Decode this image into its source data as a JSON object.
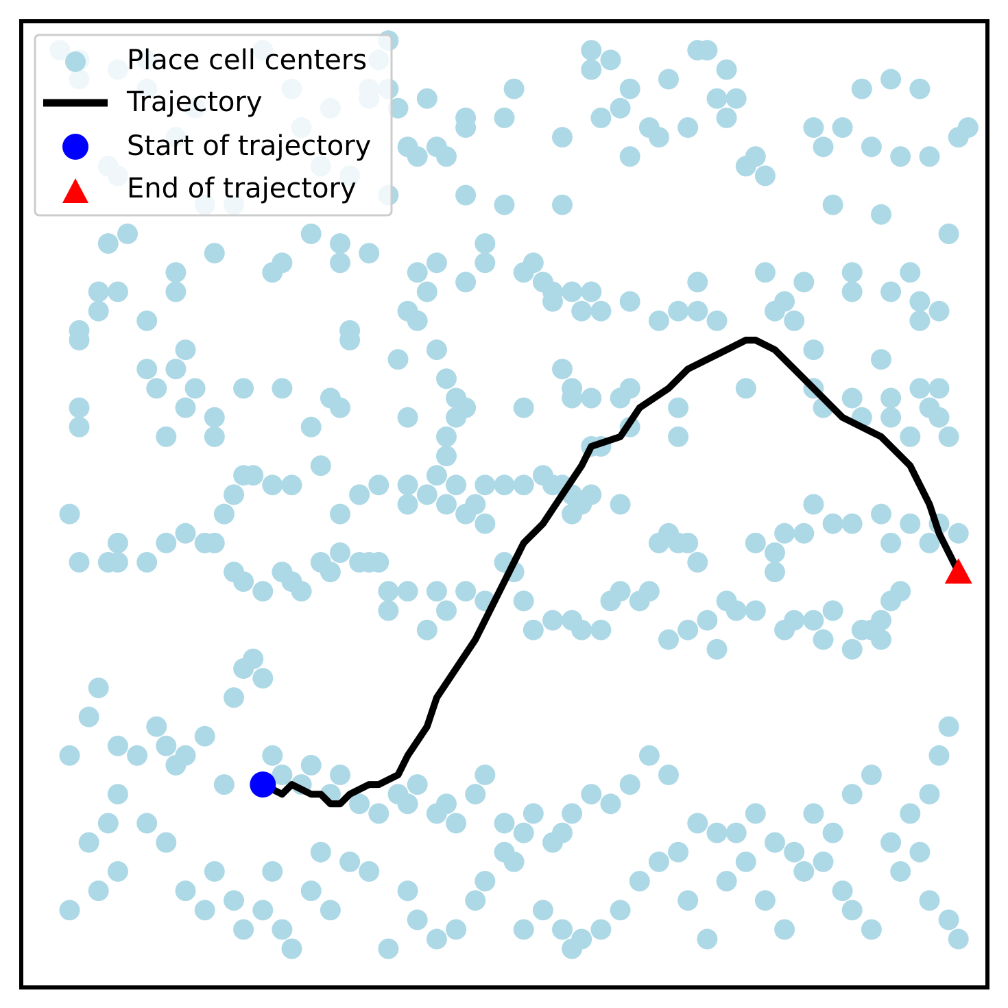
{
  "chart_data": {
    "type": "scatter",
    "title": "",
    "xlabel": "",
    "ylabel": "",
    "xlim": [
      0,
      1
    ],
    "ylim": [
      0,
      1
    ],
    "grid": false,
    "legend_position": "top-left",
    "colors": {
      "place_cells": "#add8e6",
      "trajectory": "#000000",
      "start": "#0000ff",
      "end": "#ff0000",
      "frame": "#000000"
    },
    "legend": {
      "place_cells": "Place cell centers",
      "trajectory": "Trajectory",
      "start": "Start of trajectory",
      "end": "End of trajectory"
    },
    "place_cells": [
      [
        0.04,
        0.97
      ],
      [
        0.06,
        0.96
      ],
      [
        0.06,
        0.94
      ],
      [
        0.09,
        0.85
      ],
      [
        0.1,
        0.84
      ],
      [
        0.1,
        0.95
      ],
      [
        0.13,
        0.96
      ],
      [
        0.13,
        0.93
      ],
      [
        0.16,
        0.88
      ],
      [
        0.18,
        0.91
      ],
      [
        0.19,
        0.81
      ],
      [
        0.25,
        0.97
      ],
      [
        0.28,
        0.93
      ],
      [
        0.29,
        0.89
      ],
      [
        0.31,
        0.85
      ],
      [
        0.32,
        0.91
      ],
      [
        0.34,
        0.84
      ],
      [
        0.36,
        0.93
      ],
      [
        0.36,
        0.92
      ],
      [
        0.37,
        0.96
      ],
      [
        0.38,
        0.98
      ],
      [
        0.38,
        0.93
      ],
      [
        0.39,
        0.91
      ],
      [
        0.4,
        0.87
      ],
      [
        0.41,
        0.86
      ],
      [
        0.42,
        0.92
      ],
      [
        0.43,
        0.87
      ],
      [
        0.44,
        0.86
      ],
      [
        0.46,
        0.89
      ],
      [
        0.46,
        0.9
      ],
      [
        0.46,
        0.82
      ],
      [
        0.5,
        0.81
      ],
      [
        0.5,
        0.9
      ],
      [
        0.51,
        0.93
      ],
      [
        0.56,
        0.81
      ],
      [
        0.56,
        0.88
      ],
      [
        0.59,
        0.97
      ],
      [
        0.59,
        0.95
      ],
      [
        0.6,
        0.9
      ],
      [
        0.61,
        0.96
      ],
      [
        0.62,
        0.91
      ],
      [
        0.63,
        0.86
      ],
      [
        0.63,
        0.93
      ],
      [
        0.65,
        0.89
      ],
      [
        0.66,
        0.88
      ],
      [
        0.67,
        0.94
      ],
      [
        0.69,
        0.89
      ],
      [
        0.7,
        0.97
      ],
      [
        0.71,
        0.97
      ],
      [
        0.72,
        0.92
      ],
      [
        0.73,
        0.95
      ],
      [
        0.73,
        0.9
      ],
      [
        0.74,
        0.92
      ],
      [
        0.75,
        0.85
      ],
      [
        0.76,
        0.86
      ],
      [
        0.77,
        0.84
      ],
      [
        0.82,
        0.89
      ],
      [
        0.83,
        0.87
      ],
      [
        0.84,
        0.81
      ],
      [
        0.85,
        0.89
      ],
      [
        0.87,
        0.93
      ],
      [
        0.88,
        0.87
      ],
      [
        0.89,
        0.8
      ],
      [
        0.9,
        0.94
      ],
      [
        0.91,
        0.86
      ],
      [
        0.93,
        0.93
      ],
      [
        0.94,
        0.86
      ],
      [
        0.96,
        0.78
      ],
      [
        0.97,
        0.88
      ],
      [
        0.98,
        0.89
      ],
      [
        0.09,
        0.77
      ],
      [
        0.11,
        0.78
      ],
      [
        0.08,
        0.72
      ],
      [
        0.1,
        0.72
      ],
      [
        0.13,
        0.69
      ],
      [
        0.16,
        0.74
      ],
      [
        0.16,
        0.72
      ],
      [
        0.2,
        0.76
      ],
      [
        0.22,
        0.81
      ],
      [
        0.27,
        0.75
      ],
      [
        0.26,
        0.74
      ],
      [
        0.3,
        0.78
      ],
      [
        0.33,
        0.75
      ],
      [
        0.33,
        0.77
      ],
      [
        0.36,
        0.76
      ],
      [
        0.38,
        0.82
      ],
      [
        0.41,
        0.74
      ],
      [
        0.4,
        0.7
      ],
      [
        0.43,
        0.75
      ],
      [
        0.42,
        0.72
      ],
      [
        0.46,
        0.73
      ],
      [
        0.48,
        0.75
      ],
      [
        0.48,
        0.77
      ],
      [
        0.52,
        0.74
      ],
      [
        0.53,
        0.75
      ],
      [
        0.54,
        0.73
      ],
      [
        0.55,
        0.72
      ],
      [
        0.57,
        0.72
      ],
      [
        0.55,
        0.71
      ],
      [
        0.58,
        0.7
      ],
      [
        0.59,
        0.72
      ],
      [
        0.6,
        0.7
      ],
      [
        0.63,
        0.71
      ],
      [
        0.66,
        0.69
      ],
      [
        0.68,
        0.7
      ],
      [
        0.7,
        0.73
      ],
      [
        0.7,
        0.7
      ],
      [
        0.72,
        0.69
      ],
      [
        0.77,
        0.74
      ],
      [
        0.78,
        0.7
      ],
      [
        0.79,
        0.71
      ],
      [
        0.8,
        0.69
      ],
      [
        0.81,
        0.73
      ],
      [
        0.86,
        0.72
      ],
      [
        0.86,
        0.74
      ],
      [
        0.9,
        0.72
      ],
      [
        0.92,
        0.74
      ],
      [
        0.93,
        0.71
      ],
      [
        0.93,
        0.69
      ],
      [
        0.95,
        0.7
      ],
      [
        0.06,
        0.67
      ],
      [
        0.06,
        0.68
      ],
      [
        0.08,
        0.7
      ],
      [
        0.13,
        0.64
      ],
      [
        0.14,
        0.62
      ],
      [
        0.16,
        0.64
      ],
      [
        0.18,
        0.62
      ],
      [
        0.17,
        0.66
      ],
      [
        0.23,
        0.62
      ],
      [
        0.27,
        0.62
      ],
      [
        0.33,
        0.6
      ],
      [
        0.32,
        0.61
      ],
      [
        0.34,
        0.68
      ],
      [
        0.34,
        0.67
      ],
      [
        0.39,
        0.65
      ],
      [
        0.4,
        0.59
      ],
      [
        0.41,
        0.69
      ],
      [
        0.43,
        0.66
      ],
      [
        0.44,
        0.63
      ],
      [
        0.45,
        0.61
      ],
      [
        0.45,
        0.59
      ],
      [
        0.44,
        0.57
      ],
      [
        0.46,
        0.6
      ],
      [
        0.44,
        0.55
      ],
      [
        0.52,
        0.6
      ],
      [
        0.56,
        0.64
      ],
      [
        0.57,
        0.62
      ],
      [
        0.57,
        0.61
      ],
      [
        0.59,
        0.61
      ],
      [
        0.59,
        0.56
      ],
      [
        0.6,
        0.56
      ],
      [
        0.62,
        0.61
      ],
      [
        0.63,
        0.62
      ],
      [
        0.63,
        0.58
      ],
      [
        0.68,
        0.6
      ],
      [
        0.68,
        0.57
      ],
      [
        0.75,
        0.62
      ],
      [
        0.82,
        0.62
      ],
      [
        0.82,
        0.66
      ],
      [
        0.83,
        0.6
      ],
      [
        0.86,
        0.61
      ],
      [
        0.87,
        0.59
      ],
      [
        0.89,
        0.65
      ],
      [
        0.9,
        0.61
      ],
      [
        0.9,
        0.59
      ],
      [
        0.92,
        0.57
      ],
      [
        0.93,
        0.62
      ],
      [
        0.94,
        0.6
      ],
      [
        0.95,
        0.62
      ],
      [
        0.95,
        0.59
      ],
      [
        0.96,
        0.57
      ],
      [
        0.06,
        0.6
      ],
      [
        0.06,
        0.58
      ],
      [
        0.15,
        0.57
      ],
      [
        0.17,
        0.6
      ],
      [
        0.2,
        0.59
      ],
      [
        0.2,
        0.57
      ],
      [
        0.21,
        0.49
      ],
      [
        0.22,
        0.51
      ],
      [
        0.23,
        0.53
      ],
      [
        0.24,
        0.53
      ],
      [
        0.26,
        0.52
      ],
      [
        0.28,
        0.52
      ],
      [
        0.3,
        0.58
      ],
      [
        0.31,
        0.54
      ],
      [
        0.33,
        0.49
      ],
      [
        0.35,
        0.51
      ],
      [
        0.37,
        0.52
      ],
      [
        0.4,
        0.52
      ],
      [
        0.4,
        0.5
      ],
      [
        0.42,
        0.51
      ],
      [
        0.43,
        0.53
      ],
      [
        0.44,
        0.5
      ],
      [
        0.45,
        0.52
      ],
      [
        0.46,
        0.49
      ],
      [
        0.47,
        0.5
      ],
      [
        0.48,
        0.52
      ],
      [
        0.48,
        0.48
      ],
      [
        0.5,
        0.52
      ],
      [
        0.52,
        0.52
      ],
      [
        0.54,
        0.53
      ],
      [
        0.55,
        0.52
      ],
      [
        0.56,
        0.52
      ],
      [
        0.57,
        0.51
      ],
      [
        0.57,
        0.49
      ],
      [
        0.58,
        0.5
      ],
      [
        0.59,
        0.51
      ],
      [
        0.62,
        0.5
      ],
      [
        0.67,
        0.47
      ],
      [
        0.66,
        0.46
      ],
      [
        0.68,
        0.46
      ],
      [
        0.69,
        0.46
      ],
      [
        0.7,
        0.44
      ],
      [
        0.76,
        0.46
      ],
      [
        0.78,
        0.45
      ],
      [
        0.79,
        0.47
      ],
      [
        0.81,
        0.47
      ],
      [
        0.82,
        0.5
      ],
      [
        0.84,
        0.48
      ],
      [
        0.86,
        0.48
      ],
      [
        0.89,
        0.49
      ],
      [
        0.9,
        0.46
      ],
      [
        0.92,
        0.48
      ],
      [
        0.94,
        0.46
      ],
      [
        0.95,
        0.48
      ],
      [
        0.97,
        0.47
      ],
      [
        0.05,
        0.49
      ],
      [
        0.06,
        0.44
      ],
      [
        0.09,
        0.44
      ],
      [
        0.1,
        0.44
      ],
      [
        0.1,
        0.46
      ],
      [
        0.13,
        0.44
      ],
      [
        0.15,
        0.46
      ],
      [
        0.17,
        0.47
      ],
      [
        0.19,
        0.46
      ],
      [
        0.2,
        0.46
      ],
      [
        0.22,
        0.43
      ],
      [
        0.23,
        0.42
      ],
      [
        0.25,
        0.41
      ],
      [
        0.27,
        0.43
      ],
      [
        0.28,
        0.42
      ],
      [
        0.29,
        0.41
      ],
      [
        0.31,
        0.44
      ],
      [
        0.32,
        0.43
      ],
      [
        0.33,
        0.45
      ],
      [
        0.35,
        0.44
      ],
      [
        0.36,
        0.44
      ],
      [
        0.37,
        0.44
      ],
      [
        0.38,
        0.41
      ],
      [
        0.38,
        0.39
      ],
      [
        0.4,
        0.41
      ],
      [
        0.42,
        0.37
      ],
      [
        0.43,
        0.41
      ],
      [
        0.44,
        0.39
      ],
      [
        0.46,
        0.41
      ],
      [
        0.48,
        0.4
      ],
      [
        0.5,
        0.44
      ],
      [
        0.51,
        0.43
      ],
      [
        0.52,
        0.4
      ],
      [
        0.53,
        0.37
      ],
      [
        0.55,
        0.38
      ],
      [
        0.57,
        0.38
      ],
      [
        0.58,
        0.37
      ],
      [
        0.6,
        0.37
      ],
      [
        0.61,
        0.4
      ],
      [
        0.62,
        0.41
      ],
      [
        0.64,
        0.4
      ],
      [
        0.65,
        0.41
      ],
      [
        0.67,
        0.36
      ],
      [
        0.69,
        0.37
      ],
      [
        0.71,
        0.38
      ],
      [
        0.72,
        0.35
      ],
      [
        0.73,
        0.4
      ],
      [
        0.74,
        0.39
      ],
      [
        0.76,
        0.39
      ],
      [
        0.78,
        0.43
      ],
      [
        0.79,
        0.37
      ],
      [
        0.8,
        0.38
      ],
      [
        0.82,
        0.38
      ],
      [
        0.83,
        0.36
      ],
      [
        0.84,
        0.39
      ],
      [
        0.86,
        0.35
      ],
      [
        0.87,
        0.37
      ],
      [
        0.88,
        0.37
      ],
      [
        0.89,
        0.38
      ],
      [
        0.89,
        0.36
      ],
      [
        0.9,
        0.4
      ],
      [
        0.91,
        0.41
      ],
      [
        0.05,
        0.24
      ],
      [
        0.07,
        0.28
      ],
      [
        0.08,
        0.31
      ],
      [
        0.1,
        0.25
      ],
      [
        0.1,
        0.2
      ],
      [
        0.12,
        0.24
      ],
      [
        0.14,
        0.27
      ],
      [
        0.15,
        0.25
      ],
      [
        0.16,
        0.23
      ],
      [
        0.17,
        0.24
      ],
      [
        0.19,
        0.26
      ],
      [
        0.21,
        0.21
      ],
      [
        0.22,
        0.3
      ],
      [
        0.23,
        0.33
      ],
      [
        0.24,
        0.34
      ],
      [
        0.25,
        0.32
      ],
      [
        0.26,
        0.24
      ],
      [
        0.27,
        0.22
      ],
      [
        0.29,
        0.21
      ],
      [
        0.3,
        0.23
      ],
      [
        0.32,
        0.2
      ],
      [
        0.33,
        0.22
      ],
      [
        0.35,
        0.19
      ],
      [
        0.37,
        0.18
      ],
      [
        0.39,
        0.2
      ],
      [
        0.4,
        0.19
      ],
      [
        0.41,
        0.21
      ],
      [
        0.43,
        0.18
      ],
      [
        0.44,
        0.19
      ],
      [
        0.45,
        0.17
      ],
      [
        0.47,
        0.2
      ],
      [
        0.48,
        0.22
      ],
      [
        0.5,
        0.17
      ],
      [
        0.52,
        0.16
      ],
      [
        0.53,
        0.18
      ],
      [
        0.55,
        0.15
      ],
      [
        0.56,
        0.16
      ],
      [
        0.57,
        0.18
      ],
      [
        0.59,
        0.2
      ],
      [
        0.61,
        0.19
      ],
      [
        0.63,
        0.21
      ],
      [
        0.65,
        0.24
      ],
      [
        0.67,
        0.22
      ],
      [
        0.7,
        0.17
      ],
      [
        0.72,
        0.16
      ],
      [
        0.74,
        0.16
      ],
      [
        0.76,
        0.18
      ],
      [
        0.78,
        0.15
      ],
      [
        0.8,
        0.14
      ],
      [
        0.82,
        0.18
      ],
      [
        0.84,
        0.16
      ],
      [
        0.86,
        0.2
      ],
      [
        0.88,
        0.22
      ],
      [
        0.9,
        0.15
      ],
      [
        0.92,
        0.18
      ],
      [
        0.94,
        0.2
      ],
      [
        0.95,
        0.24
      ],
      [
        0.96,
        0.27
      ],
      [
        0.05,
        0.08
      ],
      [
        0.07,
        0.15
      ],
      [
        0.08,
        0.1
      ],
      [
        0.09,
        0.17
      ],
      [
        0.1,
        0.12
      ],
      [
        0.13,
        0.17
      ],
      [
        0.15,
        0.15
      ],
      [
        0.17,
        0.1
      ],
      [
        0.19,
        0.08
      ],
      [
        0.2,
        0.12
      ],
      [
        0.22,
        0.09
      ],
      [
        0.23,
        0.06
      ],
      [
        0.25,
        0.08
      ],
      [
        0.26,
        0.12
      ],
      [
        0.27,
        0.06
      ],
      [
        0.28,
        0.04
      ],
      [
        0.3,
        0.1
      ],
      [
        0.31,
        0.14
      ],
      [
        0.32,
        0.08
      ],
      [
        0.34,
        0.13
      ],
      [
        0.36,
        0.12
      ],
      [
        0.38,
        0.04
      ],
      [
        0.4,
        0.1
      ],
      [
        0.41,
        0.07
      ],
      [
        0.43,
        0.05
      ],
      [
        0.45,
        0.06
      ],
      [
        0.47,
        0.09
      ],
      [
        0.48,
        0.11
      ],
      [
        0.5,
        0.14
      ],
      [
        0.51,
        0.13
      ],
      [
        0.52,
        0.06
      ],
      [
        0.54,
        0.08
      ],
      [
        0.56,
        0.06
      ],
      [
        0.57,
        0.04
      ],
      [
        0.58,
        0.05
      ],
      [
        0.6,
        0.06
      ],
      [
        0.62,
        0.08
      ],
      [
        0.64,
        0.11
      ],
      [
        0.66,
        0.13
      ],
      [
        0.68,
        0.14
      ],
      [
        0.69,
        0.09
      ],
      [
        0.71,
        0.05
      ],
      [
        0.73,
        0.11
      ],
      [
        0.75,
        0.13
      ],
      [
        0.77,
        0.09
      ],
      [
        0.79,
        0.06
      ],
      [
        0.81,
        0.12
      ],
      [
        0.83,
        0.13
      ],
      [
        0.85,
        0.1
      ],
      [
        0.86,
        0.08
      ],
      [
        0.88,
        0.06
      ],
      [
        0.91,
        0.12
      ],
      [
        0.93,
        0.14
      ],
      [
        0.94,
        0.09
      ],
      [
        0.96,
        0.07
      ],
      [
        0.97,
        0.05
      ]
    ],
    "trajectory": {
      "x": [
        0.25,
        0.27,
        0.28,
        0.3,
        0.31,
        0.32,
        0.33,
        0.34,
        0.36,
        0.37,
        0.39,
        0.4,
        0.42,
        0.43,
        0.45,
        0.47,
        0.48,
        0.49,
        0.5,
        0.51,
        0.52,
        0.54,
        0.56,
        0.58,
        0.59,
        0.62,
        0.64,
        0.67,
        0.69,
        0.71,
        0.73,
        0.75,
        0.76,
        0.78,
        0.8,
        0.82,
        0.83,
        0.85,
        0.87,
        0.89,
        0.91,
        0.92,
        0.94,
        0.95,
        0.96,
        0.97
      ],
      "y": [
        0.21,
        0.2,
        0.21,
        0.2,
        0.2,
        0.19,
        0.19,
        0.2,
        0.21,
        0.21,
        0.22,
        0.24,
        0.27,
        0.3,
        0.33,
        0.36,
        0.38,
        0.4,
        0.42,
        0.44,
        0.46,
        0.48,
        0.51,
        0.54,
        0.56,
        0.57,
        0.6,
        0.62,
        0.64,
        0.65,
        0.66,
        0.67,
        0.67,
        0.66,
        0.64,
        0.62,
        0.61,
        0.59,
        0.58,
        0.57,
        0.55,
        0.54,
        0.5,
        0.47,
        0.45,
        0.43
      ]
    },
    "start": [
      0.25,
      0.21
    ],
    "end": [
      0.97,
      0.43
    ]
  }
}
